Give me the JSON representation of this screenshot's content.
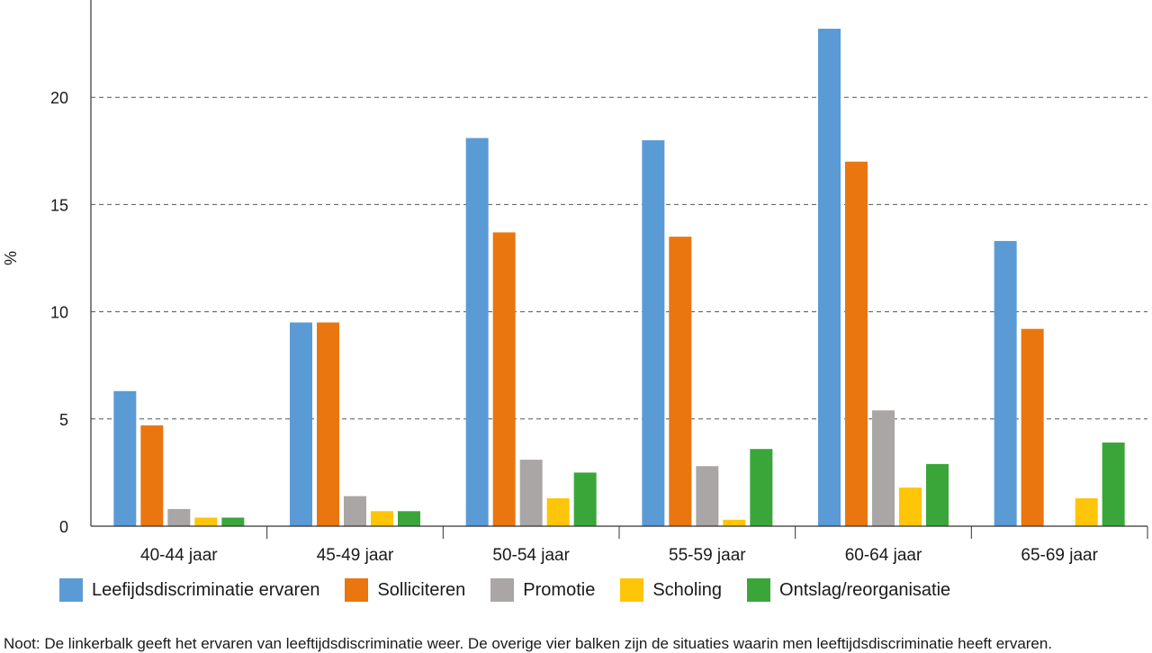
{
  "chart_data": {
    "type": "bar",
    "ylabel": "%",
    "ylim": [
      0,
      25
    ],
    "yticks": [
      0,
      5,
      10,
      15,
      20
    ],
    "grid": "horizontal dashed",
    "legend_position": "bottom",
    "categories": [
      "40-44 jaar",
      "45-49 jaar",
      "50-54 jaar",
      "55-59 jaar",
      "60-64 jaar",
      "65-69 jaar"
    ],
    "series": [
      {
        "name": "Leefijdsdiscriminatie ervaren",
        "color": "#5b9bd5",
        "values": [
          6.3,
          9.5,
          18.1,
          18.0,
          23.2,
          13.3
        ]
      },
      {
        "name": "Solliciteren",
        "color": "#e9760f",
        "values": [
          4.7,
          9.5,
          13.7,
          13.5,
          17.0,
          9.2
        ]
      },
      {
        "name": "Promotie",
        "color": "#aaa6a5",
        "values": [
          0.8,
          1.4,
          3.1,
          2.8,
          5.4,
          0
        ]
      },
      {
        "name": "Scholing",
        "color": "#ffc508",
        "values": [
          0.4,
          0.7,
          1.3,
          0.3,
          1.8,
          1.3
        ]
      },
      {
        "name": "Ontslag/reorganisatie",
        "color": "#3aa63a",
        "values": [
          0.4,
          0.7,
          2.5,
          3.6,
          2.9,
          3.9
        ]
      }
    ]
  },
  "note": "Noot: De linkerbalk geeft het ervaren van leeftijdsdiscriminatie weer. De overige vier balken zijn de situaties waarin men leeftijdsdiscriminatie heeft ervaren."
}
